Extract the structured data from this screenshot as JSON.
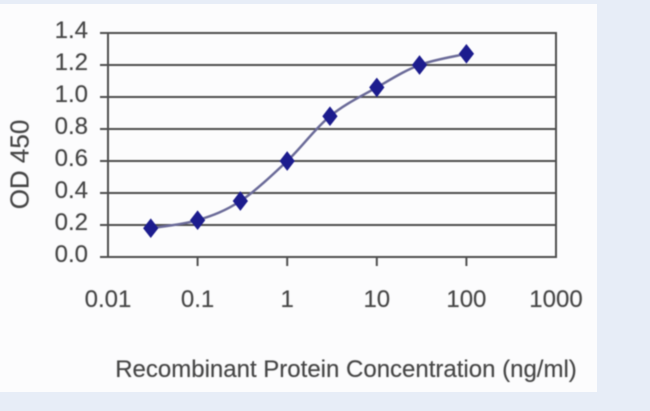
{
  "page": {
    "background_color": "#e7edf7",
    "photo_background_color": "#fcfcfd"
  },
  "chart_data": {
    "type": "line",
    "title": "",
    "xlabel": "Recombinant Protein Concentration (ng/ml)",
    "ylabel": "OD 450",
    "xscale": "log",
    "xlim": [
      0.01,
      1000
    ],
    "ylim": [
      0.0,
      1.4
    ],
    "x_ticks": [
      0.01,
      0.1,
      1,
      10,
      100,
      1000
    ],
    "x_tick_labels": [
      "0.01",
      "0.1",
      "1",
      "10",
      "100",
      "1000"
    ],
    "y_ticks": [
      0.0,
      0.2,
      0.4,
      0.6,
      0.8,
      1.0,
      1.2,
      1.4
    ],
    "y_tick_labels": [
      "0.0",
      "0.2",
      "0.4",
      "0.6",
      "0.8",
      "1.0",
      "1.2",
      "1.4"
    ],
    "grid": "horizontal",
    "legend": "none",
    "series": [
      {
        "name": "OD 450",
        "marker": "diamond",
        "smooth": true,
        "x": [
          0.03,
          0.1,
          0.3,
          1,
          3,
          10,
          30,
          100
        ],
        "y": [
          0.18,
          0.23,
          0.35,
          0.6,
          0.88,
          1.06,
          1.2,
          1.27
        ]
      }
    ],
    "colors": {
      "marker": "#1c1c8e",
      "line": "#6b6b99",
      "grid": "#4f4f4f",
      "axis": "#4f4f4f",
      "text": "#474747"
    }
  }
}
